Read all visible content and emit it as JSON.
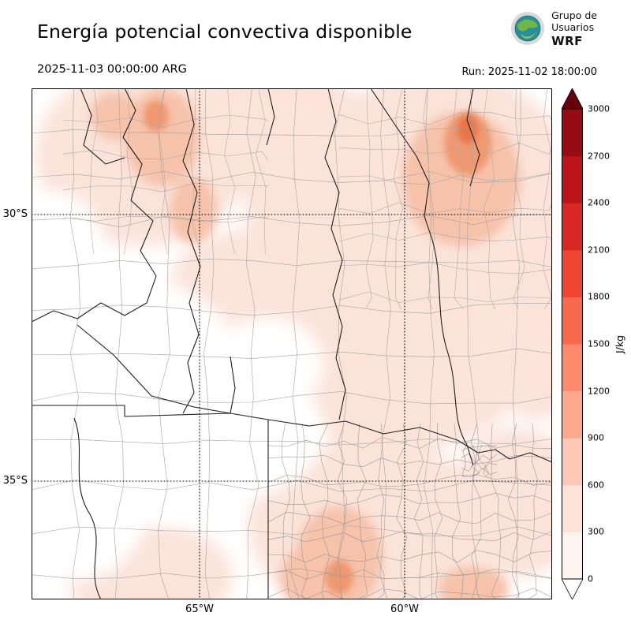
{
  "header": {
    "title": "Energía potencial convectiva disponible",
    "valid_time": "2025-11-03 00:00:00 ARG",
    "run_time": "Run: 2025-11-02 18:00:00"
  },
  "logo": {
    "line1": "Grupo de",
    "line2": "Usuarios",
    "line3": "WRF"
  },
  "map": {
    "lat_ticks": [
      {
        "label": "30°S"
      },
      {
        "label": "35°S"
      }
    ],
    "lon_ticks": [
      {
        "label": "65°W"
      },
      {
        "label": "60°W"
      }
    ]
  },
  "colorbar": {
    "unit_label": "J/kg",
    "ticks": [
      "0",
      "300",
      "600",
      "900",
      "1200",
      "1500",
      "1800",
      "2100",
      "2400",
      "2700",
      "3000"
    ],
    "segment_colors": [
      "#fff5f0",
      "#fee3d6",
      "#fdc9b4",
      "#fcaa8e",
      "#fc8a6b",
      "#f9694c",
      "#ef4533",
      "#d92723",
      "#bb151a",
      "#970b13"
    ],
    "under_color": "#ffffff",
    "over_color": "#67000d"
  }
}
